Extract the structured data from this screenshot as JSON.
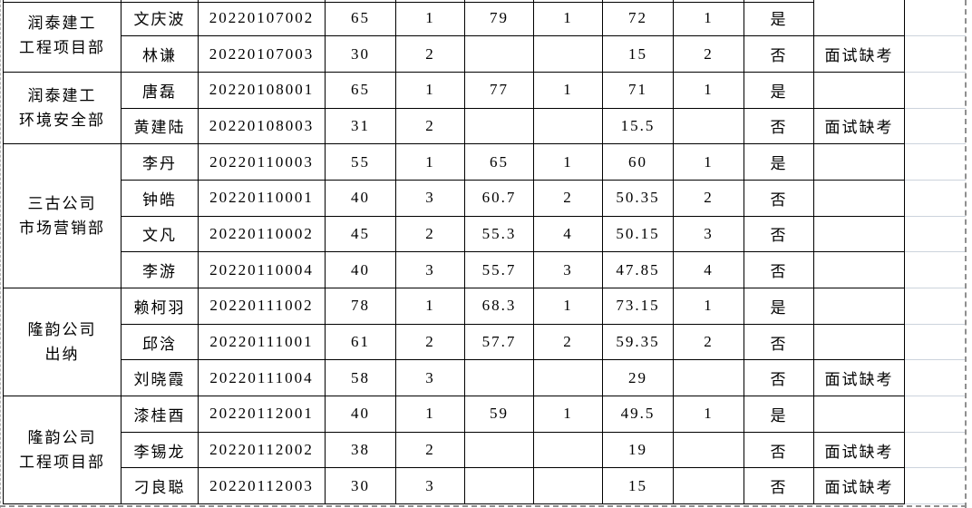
{
  "sheet": {
    "departments": [
      {
        "line1": "润泰建工",
        "line2": "工程项目部"
      },
      {
        "line1": "润泰建工",
        "line2": "环境安全部"
      },
      {
        "line1": "三古公司",
        "line2": "市场营销部"
      },
      {
        "line1": "隆韵公司",
        "line2": "出纳"
      },
      {
        "line1": "隆韵公司",
        "line2": "工程项目部"
      }
    ],
    "rows": [
      {
        "name": "文庆波",
        "id": "20220107002",
        "written_score": "65",
        "written_rank": "1",
        "interview_score": "79",
        "interview_rank": "1",
        "total_score": "72",
        "total_rank": "1",
        "hired": "是",
        "remark": ""
      },
      {
        "name": "林谦",
        "id": "20220107003",
        "written_score": "30",
        "written_rank": "2",
        "interview_score": "",
        "interview_rank": "",
        "total_score": "15",
        "total_rank": "2",
        "hired": "否",
        "remark": "面试缺考"
      },
      {
        "name": "唐磊",
        "id": "20220108001",
        "written_score": "65",
        "written_rank": "1",
        "interview_score": "77",
        "interview_rank": "1",
        "total_score": "71",
        "total_rank": "1",
        "hired": "是",
        "remark": ""
      },
      {
        "name": "黄建陆",
        "id": "20220108003",
        "written_score": "31",
        "written_rank": "2",
        "interview_score": "",
        "interview_rank": "",
        "total_score": "15.5",
        "total_rank": "",
        "hired": "否",
        "remark": "面试缺考"
      },
      {
        "name": "李丹",
        "id": "20220110003",
        "written_score": "55",
        "written_rank": "1",
        "interview_score": "65",
        "interview_rank": "1",
        "total_score": "60",
        "total_rank": "1",
        "hired": "是",
        "remark": ""
      },
      {
        "name": "钟皓",
        "id": "20220110001",
        "written_score": "40",
        "written_rank": "3",
        "interview_score": "60.7",
        "interview_rank": "2",
        "total_score": "50.35",
        "total_rank": "2",
        "hired": "否",
        "remark": ""
      },
      {
        "name": "文凡",
        "id": "20220110002",
        "written_score": "45",
        "written_rank": "2",
        "interview_score": "55.3",
        "interview_rank": "4",
        "total_score": "50.15",
        "total_rank": "3",
        "hired": "否",
        "remark": ""
      },
      {
        "name": "李游",
        "id": "20220110004",
        "written_score": "40",
        "written_rank": "3",
        "interview_score": "55.7",
        "interview_rank": "3",
        "total_score": "47.85",
        "total_rank": "4",
        "hired": "否",
        "remark": ""
      },
      {
        "name": "赖柯羽",
        "id": "20220111002",
        "written_score": "78",
        "written_rank": "1",
        "interview_score": "68.3",
        "interview_rank": "1",
        "total_score": "73.15",
        "total_rank": "1",
        "hired": "是",
        "remark": ""
      },
      {
        "name": "邱浛",
        "id": "20220111001",
        "written_score": "61",
        "written_rank": "2",
        "interview_score": "57.7",
        "interview_rank": "2",
        "total_score": "59.35",
        "total_rank": "2",
        "hired": "否",
        "remark": ""
      },
      {
        "name": "刘晓霞",
        "id": "20220111004",
        "written_score": "58",
        "written_rank": "3",
        "interview_score": "",
        "interview_rank": "",
        "total_score": "29",
        "total_rank": "",
        "hired": "否",
        "remark": "面试缺考"
      },
      {
        "name": "漆桂酉",
        "id": "20220112001",
        "written_score": "40",
        "written_rank": "1",
        "interview_score": "59",
        "interview_rank": "1",
        "total_score": "49.5",
        "total_rank": "1",
        "hired": "是",
        "remark": ""
      },
      {
        "name": "李锡龙",
        "id": "20220112002",
        "written_score": "38",
        "written_rank": "2",
        "interview_score": "",
        "interview_rank": "",
        "total_score": "19",
        "total_rank": "",
        "hired": "否",
        "remark": "面试缺考"
      },
      {
        "name": "刁良聪",
        "id": "20220112003",
        "written_score": "30",
        "written_rank": "3",
        "interview_score": "",
        "interview_rank": "",
        "total_score": "15",
        "total_rank": "",
        "hired": "否",
        "remark": "面试缺考"
      }
    ],
    "colors": {
      "cell_border": "#000000",
      "gridline": "#ccd3dc",
      "page_break_dash": "#8f8f8f"
    }
  }
}
